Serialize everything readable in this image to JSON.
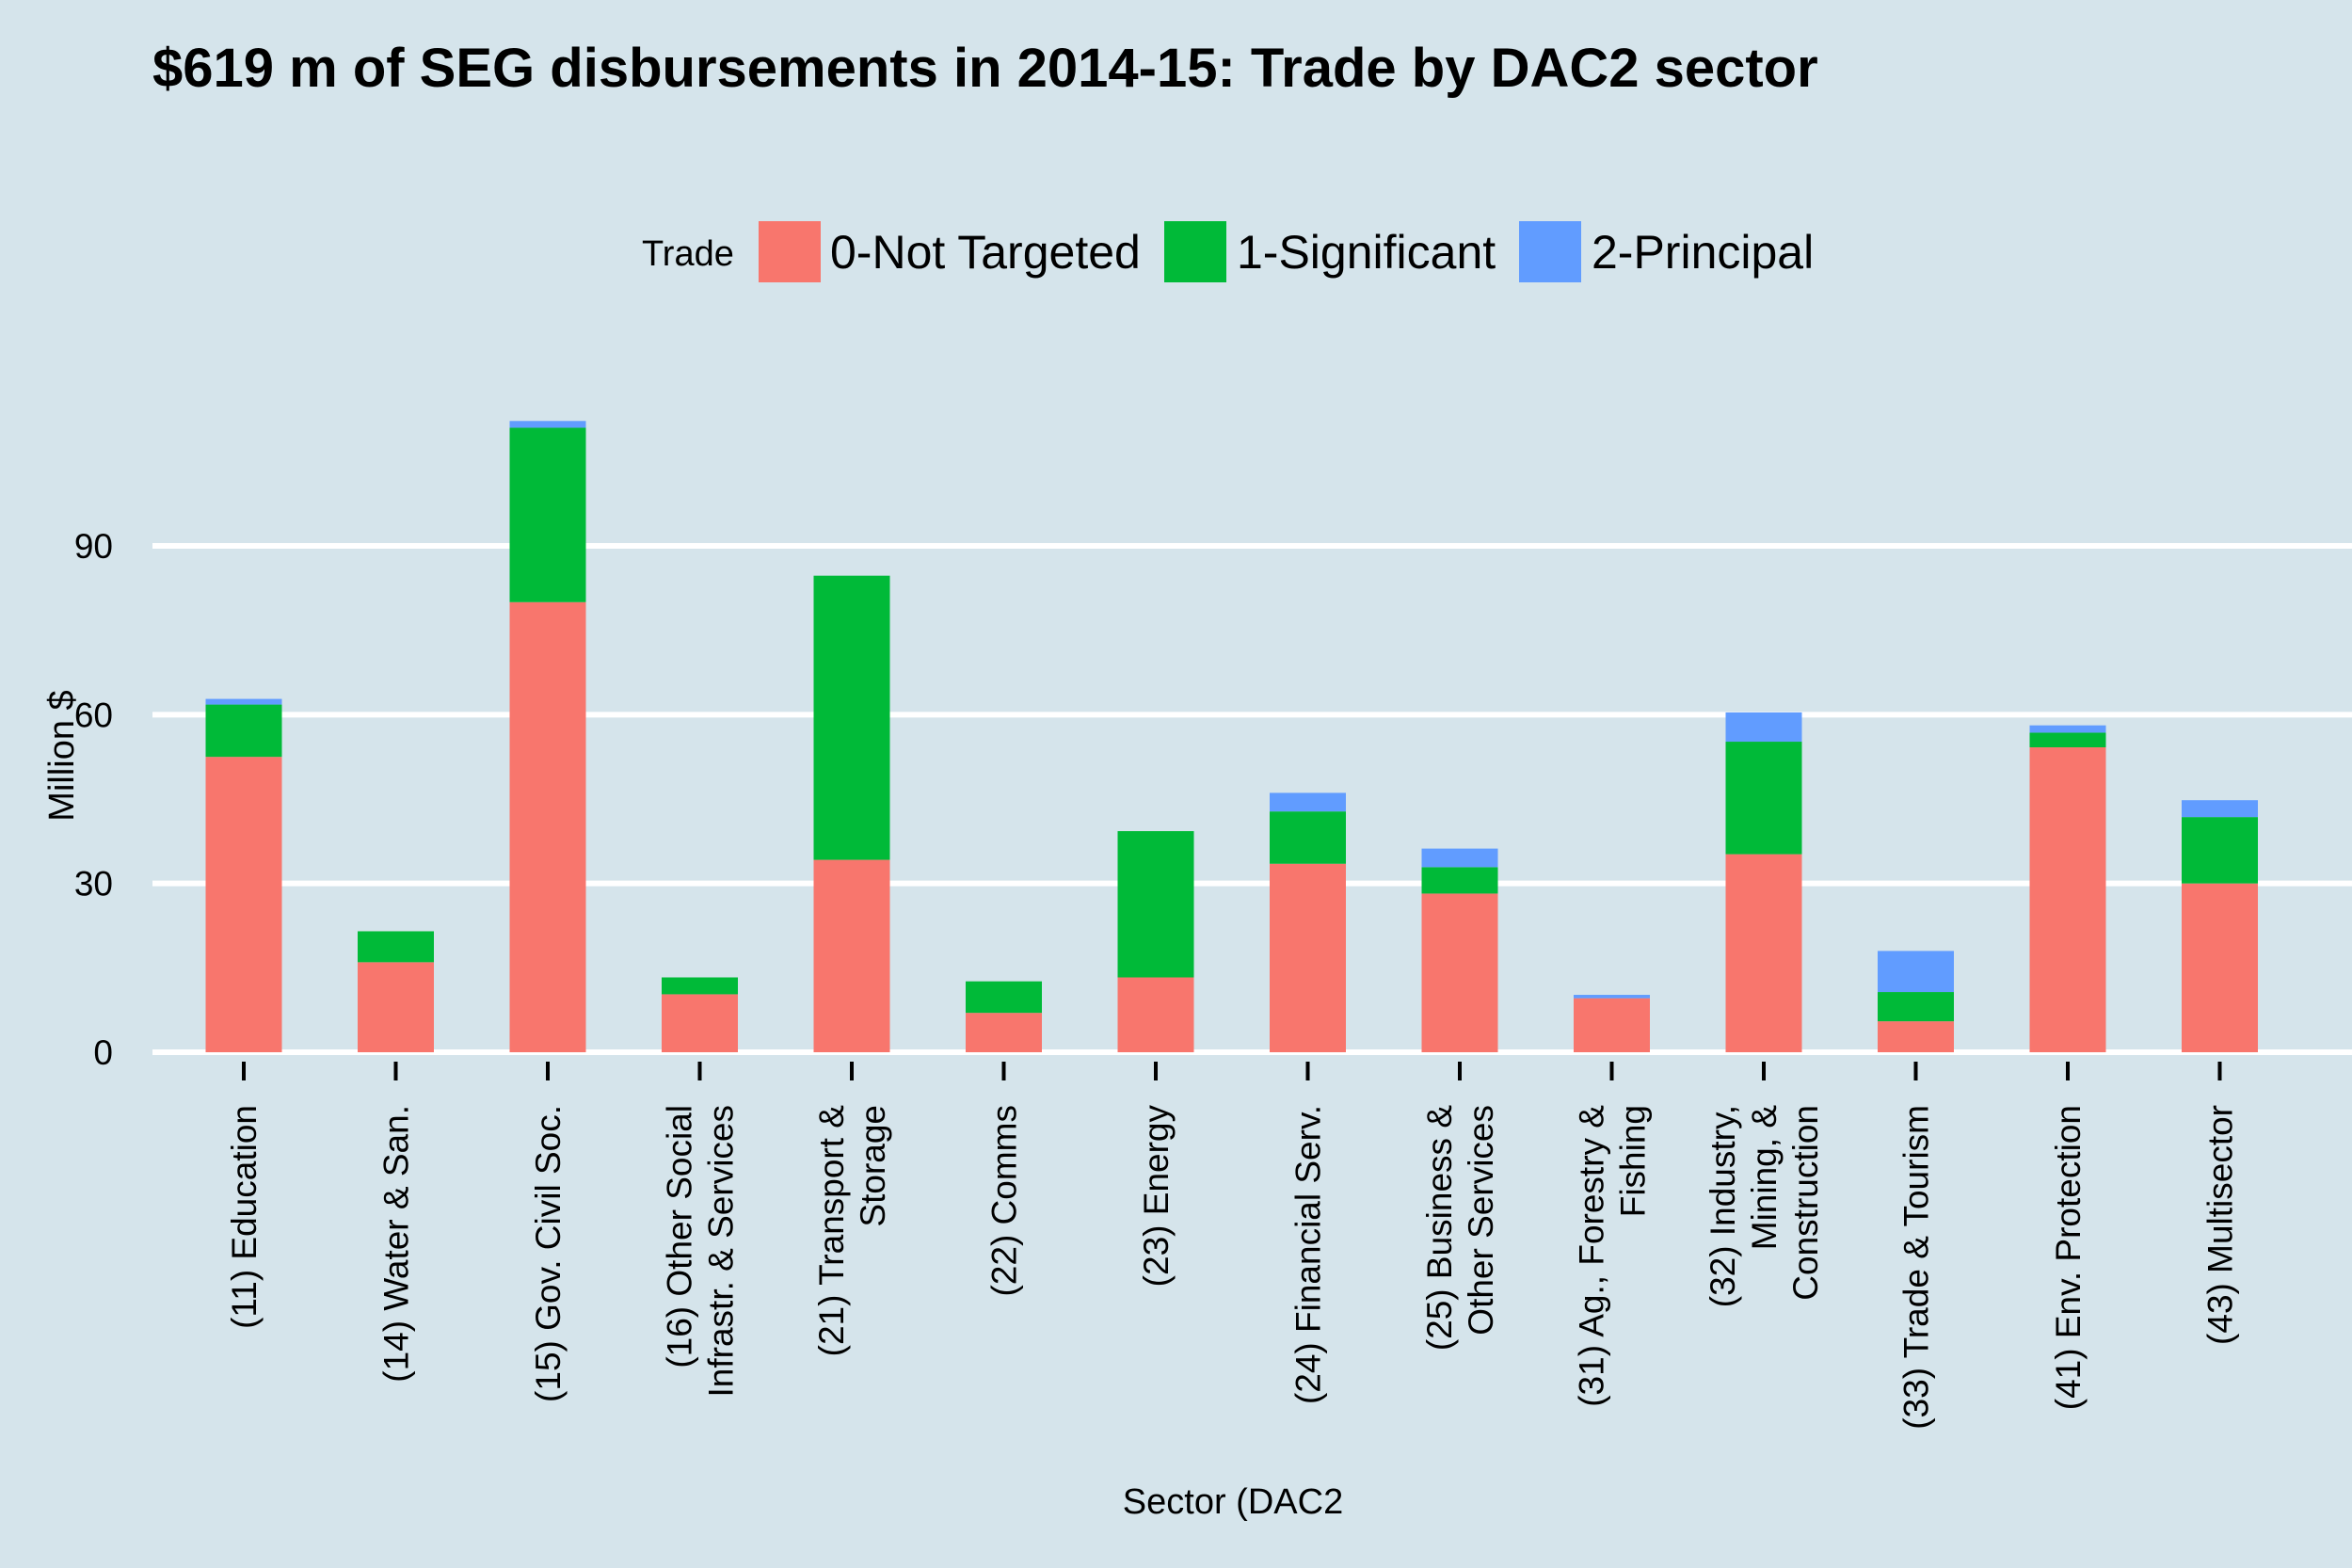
{
  "chart_data": {
    "type": "bar",
    "stacked": true,
    "title": "$619 m of SEG disbursements in 2014-15: Trade by DAC2 sector",
    "xlabel": "Sector (DAC2",
    "ylabel": "Million $",
    "ylim": [
      0,
      118
    ],
    "yticks": [
      0,
      30,
      60,
      90
    ],
    "grid": "horizontal",
    "legend": {
      "title": "Trade",
      "placement": "top"
    },
    "categories": [
      [
        "(11) Education"
      ],
      [
        "(14) Water & San."
      ],
      [
        "(15) Gov. Civil Soc."
      ],
      [
        "(16) Other Social",
        "Infrastr. & Services"
      ],
      [
        "(21) Transport &",
        "Storage"
      ],
      [
        "(22) Comms"
      ],
      [
        "(23) Energy"
      ],
      [
        "(24) Financial Serv."
      ],
      [
        "(25) Business &",
        "Other Services"
      ],
      [
        "(31) Ag., Forestry &",
        "Fishing"
      ],
      [
        "(32) Industry,",
        "Mining, &",
        "Construction"
      ],
      [
        "(33) Trade & Tourism"
      ],
      [
        "(41) Env. Protection"
      ],
      [
        "(43) Multisector"
      ]
    ],
    "series": [
      {
        "name": "0-Not Targeted",
        "color": "#f8766d",
        "values": [
          52.5,
          16,
          80,
          10.3,
          34.2,
          7,
          13.3,
          33.5,
          28.2,
          9.6,
          35.2,
          5.5,
          54.2,
          30
        ]
      },
      {
        "name": "1-Significant",
        "color": "#00ba38",
        "values": [
          9.3,
          5.5,
          31,
          3,
          50.5,
          5.6,
          26,
          9.3,
          4.7,
          0,
          20,
          5.2,
          2.6,
          11.8
        ]
      },
      {
        "name": "2-Principal",
        "color": "#619cff",
        "values": [
          1,
          0,
          1.2,
          0,
          0,
          0,
          0,
          3.3,
          3.3,
          0.6,
          5.2,
          7.3,
          1.3,
          3
        ]
      }
    ]
  }
}
